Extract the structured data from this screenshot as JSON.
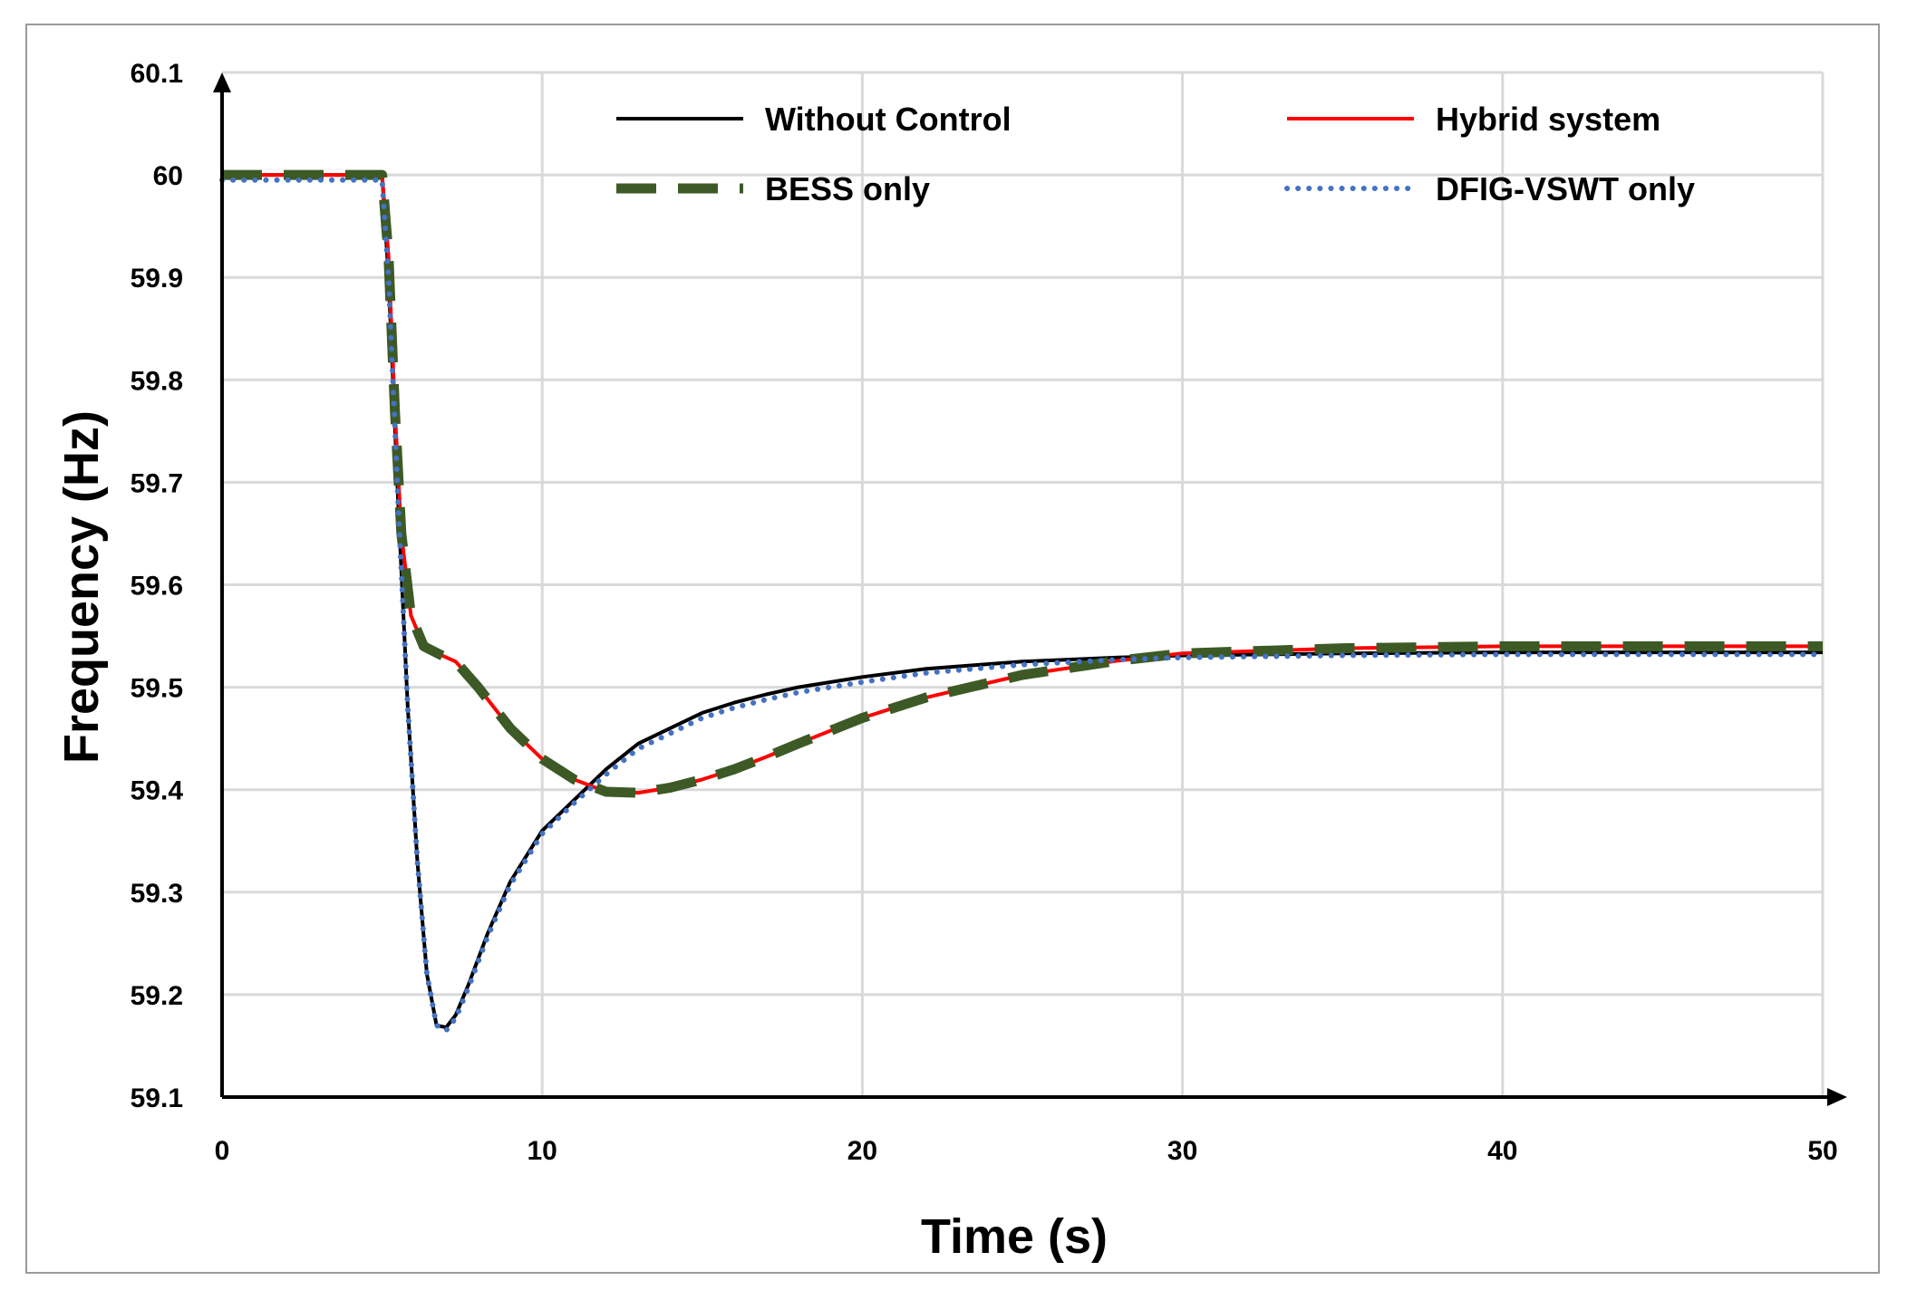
{
  "chart_data": {
    "type": "line",
    "title": "",
    "xlabel": "Time (s)",
    "ylabel": "Frequency (Hz)",
    "xlim": [
      0,
      50
    ],
    "ylim": [
      59.1,
      60.1
    ],
    "xticks": [
      0,
      10,
      20,
      30,
      40,
      50
    ],
    "xtick_labels": [
      "0",
      "10",
      "20",
      "30",
      "40",
      "50"
    ],
    "yticks": [
      59.1,
      59.2,
      59.3,
      59.4,
      59.5,
      59.6,
      59.7,
      59.8,
      59.9,
      60,
      60.1
    ],
    "ytick_labels": [
      "59.1",
      "59.2",
      "59.3",
      "59.4",
      "59.5",
      "59.6",
      "59.7",
      "59.8",
      "59.9",
      "60",
      "60.1"
    ],
    "grid": true,
    "legend_position": "top",
    "series": [
      {
        "name": "Without Control",
        "color": "#000000",
        "style": "solid",
        "points": [
          [
            0,
            60
          ],
          [
            5,
            60
          ],
          [
            5.2,
            59.9
          ],
          [
            5.5,
            59.68
          ],
          [
            5.8,
            59.48
          ],
          [
            6.1,
            59.33
          ],
          [
            6.4,
            59.22
          ],
          [
            6.7,
            59.17
          ],
          [
            7,
            59.168
          ],
          [
            7.3,
            59.18
          ],
          [
            7.7,
            59.21
          ],
          [
            8.3,
            59.26
          ],
          [
            9,
            59.31
          ],
          [
            10,
            59.36
          ],
          [
            11,
            59.39
          ],
          [
            12,
            59.42
          ],
          [
            13,
            59.445
          ],
          [
            14,
            59.46
          ],
          [
            15,
            59.475
          ],
          [
            16,
            59.485
          ],
          [
            17,
            59.493
          ],
          [
            18,
            59.5
          ],
          [
            20,
            59.51
          ],
          [
            22,
            59.518
          ],
          [
            25,
            59.525
          ],
          [
            28,
            59.529
          ],
          [
            30,
            59.531
          ],
          [
            35,
            59.533
          ],
          [
            40,
            59.534
          ],
          [
            45,
            59.534
          ],
          [
            50,
            59.534
          ]
        ]
      },
      {
        "name": "Hybrid system",
        "color": "#ff0000",
        "style": "solid",
        "points": [
          [
            0,
            60
          ],
          [
            5,
            60
          ],
          [
            5.2,
            59.92
          ],
          [
            5.4,
            59.77
          ],
          [
            5.6,
            59.65
          ],
          [
            5.9,
            59.57
          ],
          [
            6.3,
            59.54
          ],
          [
            6.8,
            59.532
          ],
          [
            7.3,
            59.525
          ],
          [
            8,
            59.5
          ],
          [
            9,
            59.46
          ],
          [
            10,
            59.43
          ],
          [
            11,
            59.41
          ],
          [
            12,
            59.398
          ],
          [
            13,
            59.397
          ],
          [
            14,
            59.402
          ],
          [
            15,
            59.41
          ],
          [
            16,
            59.42
          ],
          [
            17,
            59.432
          ],
          [
            18,
            59.445
          ],
          [
            20,
            59.47
          ],
          [
            22,
            59.49
          ],
          [
            25,
            59.512
          ],
          [
            28,
            59.526
          ],
          [
            30,
            59.533
          ],
          [
            35,
            59.538
          ],
          [
            40,
            59.54
          ],
          [
            45,
            59.54
          ],
          [
            50,
            59.54
          ]
        ]
      },
      {
        "name": "BESS only",
        "color": "#3d5a26",
        "style": "dashed",
        "points": [
          [
            0,
            60
          ],
          [
            5,
            60
          ],
          [
            5.2,
            59.92
          ],
          [
            5.4,
            59.77
          ],
          [
            5.6,
            59.65
          ],
          [
            5.9,
            59.57
          ],
          [
            6.3,
            59.54
          ],
          [
            6.8,
            59.532
          ],
          [
            7.3,
            59.525
          ],
          [
            8,
            59.5
          ],
          [
            9,
            59.46
          ],
          [
            10,
            59.43
          ],
          [
            11,
            59.41
          ],
          [
            12,
            59.398
          ],
          [
            13,
            59.397
          ],
          [
            14,
            59.402
          ],
          [
            15,
            59.41
          ],
          [
            16,
            59.42
          ],
          [
            17,
            59.432
          ],
          [
            18,
            59.445
          ],
          [
            20,
            59.47
          ],
          [
            22,
            59.49
          ],
          [
            25,
            59.512
          ],
          [
            28,
            59.526
          ],
          [
            30,
            59.533
          ],
          [
            35,
            59.538
          ],
          [
            40,
            59.54
          ],
          [
            45,
            59.54
          ],
          [
            50,
            59.54
          ]
        ]
      },
      {
        "name": "DFIG-VSWT only",
        "color": "#4472c4",
        "style": "dotted",
        "points": [
          [
            0,
            59.995
          ],
          [
            5,
            59.995
          ],
          [
            5.2,
            59.9
          ],
          [
            5.5,
            59.68
          ],
          [
            5.8,
            59.48
          ],
          [
            6.1,
            59.33
          ],
          [
            6.4,
            59.22
          ],
          [
            6.7,
            59.17
          ],
          [
            7,
            59.165
          ],
          [
            7.3,
            59.177
          ],
          [
            7.7,
            59.207
          ],
          [
            8.3,
            59.257
          ],
          [
            9,
            59.307
          ],
          [
            10,
            59.357
          ],
          [
            11,
            59.387
          ],
          [
            12,
            59.415
          ],
          [
            13,
            59.44
          ],
          [
            14,
            59.455
          ],
          [
            15,
            59.47
          ],
          [
            16,
            59.48
          ],
          [
            17,
            59.488
          ],
          [
            18,
            59.495
          ],
          [
            20,
            59.505
          ],
          [
            22,
            59.514
          ],
          [
            25,
            59.522
          ],
          [
            28,
            59.527
          ],
          [
            30,
            59.529
          ],
          [
            35,
            59.531
          ],
          [
            40,
            59.532
          ],
          [
            45,
            59.532
          ],
          [
            50,
            59.532
          ]
        ]
      }
    ]
  }
}
